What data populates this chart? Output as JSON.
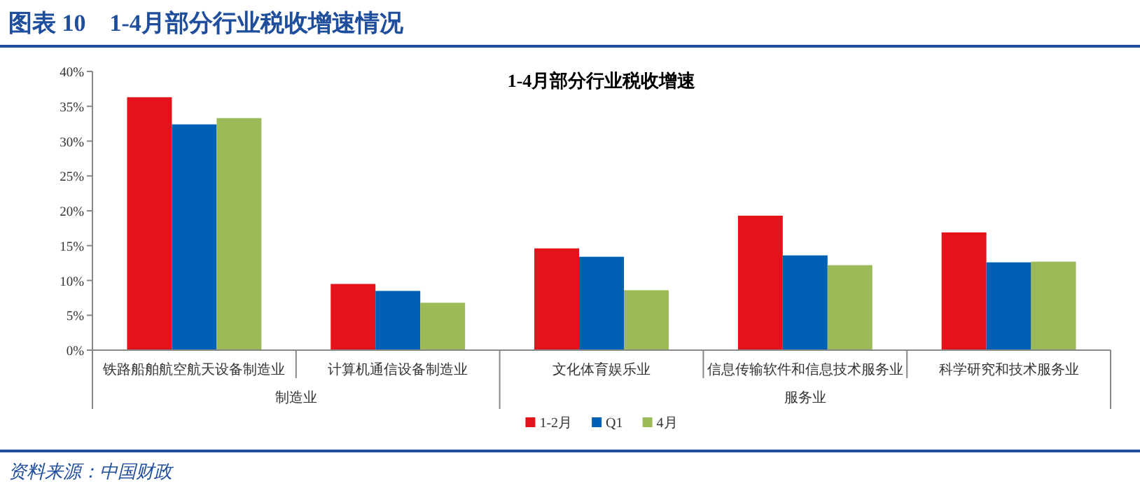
{
  "chart_data": {
    "type": "bar",
    "title": "图表 10　1-4月部分行业税收增速情况",
    "subtitle": "1-4月部分行业税收增速",
    "categories": [
      "铁路船舶航空航天设备制造业",
      "计算机通信设备制造业",
      "文化体育娱乐业",
      "信息传输软件和信息技术服务业",
      "科学研究和技术服务业"
    ],
    "series": [
      {
        "name": "1-2月",
        "color": "#e3121b",
        "values": [
          36.3,
          9.5,
          14.6,
          19.3,
          16.9
        ]
      },
      {
        "name": "Q1",
        "color": "#0060b6",
        "values": [
          32.4,
          8.5,
          13.4,
          13.6,
          12.6
        ]
      },
      {
        "name": "4月",
        "color": "#9bbb59",
        "values": [
          33.3,
          6.8,
          8.6,
          12.2,
          12.7
        ]
      }
    ],
    "ylim": [
      0,
      40
    ],
    "yticks": [
      {
        "value": 0,
        "label": "0%"
      },
      {
        "value": 5,
        "label": "5%"
      },
      {
        "value": 10,
        "label": "10%"
      },
      {
        "value": 15,
        "label": "15%"
      },
      {
        "value": 20,
        "label": "20%"
      },
      {
        "value": 25,
        "label": "25%"
      },
      {
        "value": 30,
        "label": "30%"
      },
      {
        "value": 35,
        "label": "35%"
      },
      {
        "value": 40,
        "label": "40%"
      }
    ],
    "grid": false,
    "legend": "bottom",
    "annotations": [
      "制造业",
      "服务业",
      "资料来源：中国财政"
    ]
  }
}
